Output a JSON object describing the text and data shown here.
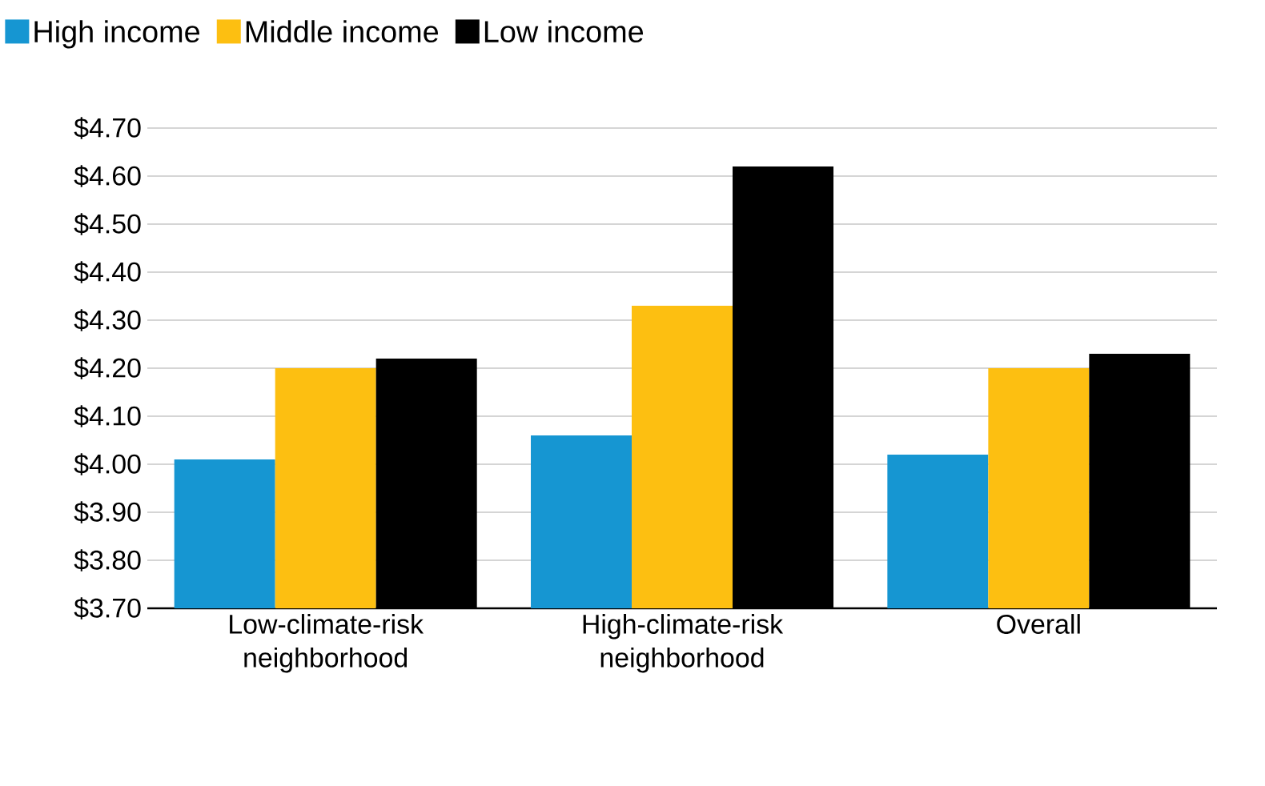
{
  "chart_data": {
    "type": "bar",
    "categories": [
      "Low-climate-risk neighborhood",
      "High-climate-risk neighborhood",
      "Overall"
    ],
    "series": [
      {
        "name": "High income",
        "color": "#1696d2",
        "values": [
          4.01,
          4.06,
          4.02
        ]
      },
      {
        "name": "Middle income",
        "color": "#fdbf11",
        "values": [
          4.2,
          4.33,
          4.2
        ]
      },
      {
        "name": "Low income",
        "color": "#000000",
        "values": [
          4.22,
          4.62,
          4.23
        ]
      }
    ],
    "ylim": [
      3.7,
      4.7
    ],
    "yticks": [
      {
        "value": 3.7,
        "label": "$3.70"
      },
      {
        "value": 3.8,
        "label": "$3.80"
      },
      {
        "value": 3.9,
        "label": "$3.90"
      },
      {
        "value": 4.0,
        "label": "$4.00"
      },
      {
        "value": 4.1,
        "label": "$4.10"
      },
      {
        "value": 4.2,
        "label": "$4.20"
      },
      {
        "value": 4.3,
        "label": "$4.30"
      },
      {
        "value": 4.4,
        "label": "$4.40"
      },
      {
        "value": 4.5,
        "label": "$4.50"
      },
      {
        "value": 4.6,
        "label": "$4.60"
      },
      {
        "value": 4.7,
        "label": "$4.70"
      }
    ],
    "grid": "y",
    "legend": "top"
  }
}
